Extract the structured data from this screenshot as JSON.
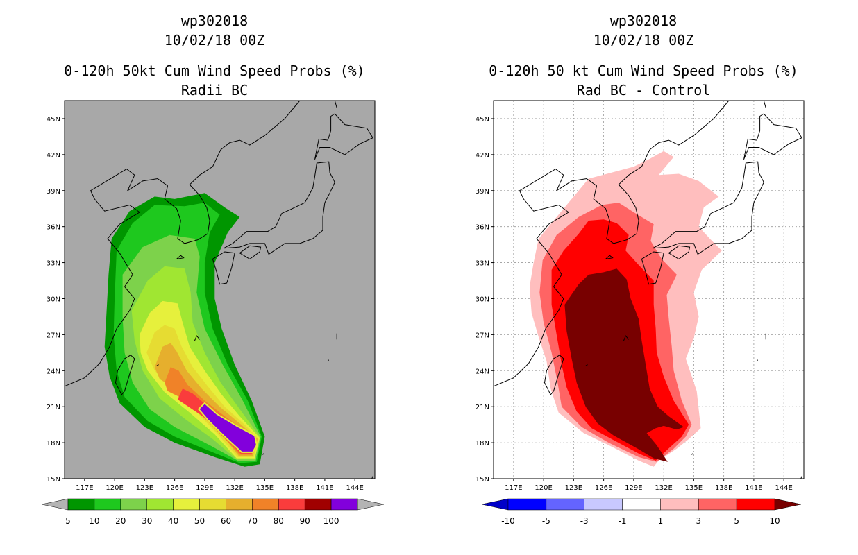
{
  "left": {
    "storm": "wp302018",
    "datetime": "10/02/18 00Z",
    "product": "0-120h 50kt Cum Wind Speed Probs (%)",
    "variant": "Radii BC",
    "colorbar": {
      "labels": [
        "5",
        "10",
        "20",
        "30",
        "40",
        "50",
        "60",
        "70",
        "80",
        "90",
        "100"
      ],
      "colors": [
        "#009600",
        "#1ec81e",
        "#7dd24b",
        "#a0e632",
        "#e6f03c",
        "#e6dc32",
        "#e6af2d",
        "#f08228",
        "#fa3c3c",
        "#a00000",
        "#8200dc"
      ],
      "end_color": "#b4b4b4"
    },
    "background": "#a8a8a8"
  },
  "right": {
    "storm": "wp302018",
    "datetime": "10/02/18 00Z",
    "product": "0-120h 50 kt Cum Wind Speed Probs (%)",
    "variant": "Rad BC - Control",
    "colorbar": {
      "labels": [
        "-10",
        "-5",
        "-3",
        "-1",
        "1",
        "3",
        "5",
        "10"
      ],
      "colors": [
        "#0000c8",
        "#0000ff",
        "#6464ff",
        "#c8c8ff",
        "#ffffff",
        "#ffbebe",
        "#ff6464",
        "#ff0000",
        "#780000"
      ]
    },
    "background": "#ffffff"
  },
  "axes": {
    "lon_labels": [
      "117E",
      "120E",
      "123E",
      "126E",
      "129E",
      "132E",
      "135E",
      "138E",
      "141E",
      "144E"
    ],
    "lat_labels": [
      "15N",
      "18N",
      "21N",
      "24N",
      "27N",
      "30N",
      "33N",
      "36N",
      "39N",
      "42N",
      "45N"
    ],
    "lon_values": [
      117,
      120,
      123,
      126,
      129,
      132,
      135,
      138,
      141,
      144
    ],
    "lat_values": [
      15,
      18,
      21,
      24,
      27,
      30,
      33,
      36,
      39,
      42,
      45
    ],
    "lon_range": [
      115,
      146
    ],
    "lat_range": [
      15,
      46.5
    ]
  },
  "map_colors": {
    "prob_5": "#009600",
    "prob_10": "#1ec81e",
    "prob_20": "#7dd24b",
    "prob_30": "#a0e632",
    "prob_40": "#e6f03c",
    "prob_50": "#e6dc32",
    "prob_60": "#e6af2d",
    "prob_70": "#f08228",
    "prob_80": "#fa3c3c",
    "prob_90": "#a00000",
    "prob_100": "#8200dc",
    "diff_1": "#ffbebe",
    "diff_3": "#ff6464",
    "diff_5": "#ff0000",
    "diff_10": "#780000",
    "coast": "#000000",
    "grid": "#999999"
  }
}
